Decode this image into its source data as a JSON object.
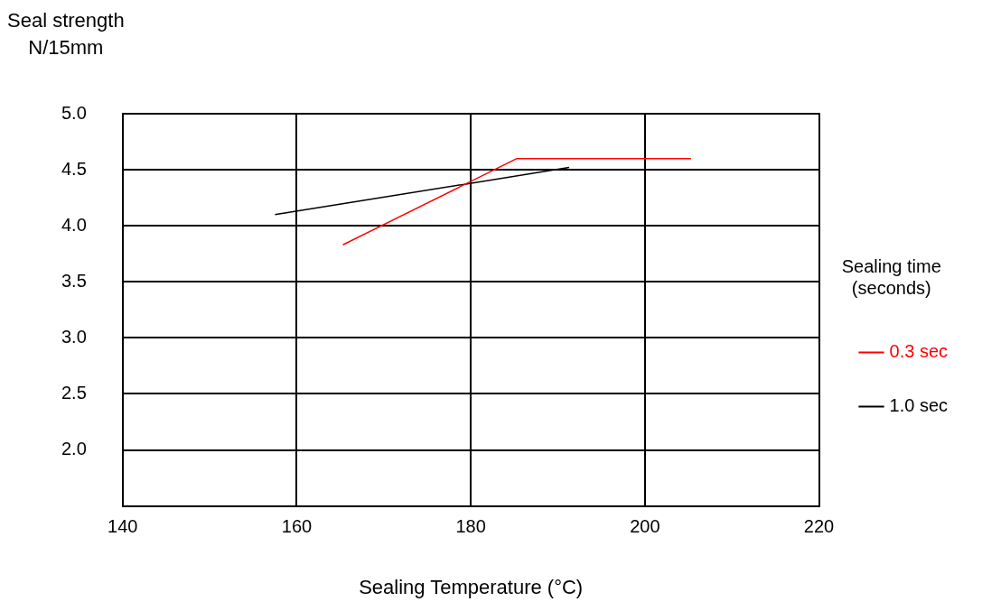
{
  "chart_data": {
    "type": "line",
    "xlabel": "Sealing Temperature (°C)",
    "ylabel": "Seal strength\nN/15mm",
    "legend_title": "Sealing time\n(seconds)",
    "series": [
      {
        "name": "0.3 sec",
        "color": "#ff0000",
        "x": [
          165.3,
          185.3,
          205.3
        ],
        "values": [
          3.83,
          4.6,
          4.6
        ]
      },
      {
        "name": "1.0 sec",
        "color": "#000000",
        "x": [
          157.5,
          191.3
        ],
        "values": [
          4.1,
          4.52
        ]
      }
    ],
    "xlim": [
      140,
      220
    ],
    "xticks": [
      140,
      160,
      180,
      200,
      220
    ],
    "ylim": [
      1.5,
      5.0
    ],
    "yticks": [
      {
        "value": 1.5,
        "label": null
      },
      {
        "value": 2,
        "label": "2.0"
      },
      {
        "value": 2.5,
        "label": "2.5"
      },
      {
        "value": 3,
        "label": "3.0"
      },
      {
        "value": 3.5,
        "label": "3.5"
      },
      {
        "value": 4,
        "label": "4.0"
      },
      {
        "value": 4.5,
        "label": "4.5"
      },
      {
        "value": 5,
        "label": "5.0"
      }
    ],
    "grid": true,
    "legend": "right",
    "marker": "none",
    "line_style": "solid"
  }
}
